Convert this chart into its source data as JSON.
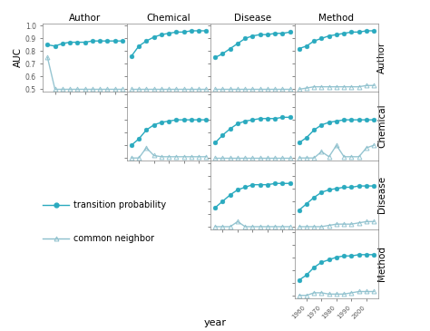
{
  "years": [
    1955,
    1960,
    1965,
    1970,
    1975,
    1980,
    1985,
    1990,
    1995,
    2000,
    2005
  ],
  "col_labels": [
    "Author",
    "Chemical",
    "Disease",
    "Method"
  ],
  "row_labels": [
    "Author",
    "Chemical",
    "Disease",
    "Method"
  ],
  "tp_color": "#2aaabf",
  "cn_color": "#8bbfcc",
  "tp_marker": "o",
  "cn_marker": "^",
  "tp_markersize": 3.5,
  "cn_markersize": 3.5,
  "linewidth": 1.0,
  "auc_ylabel": "AUC",
  "xlabel": "year",
  "data": {
    "0_0": {
      "tp": [
        0.85,
        0.84,
        0.86,
        0.87,
        0.87,
        0.87,
        0.88,
        0.88,
        0.88,
        0.88,
        0.88
      ],
      "cn": [
        0.75,
        0.5,
        0.5,
        0.5,
        0.5,
        0.5,
        0.5,
        0.5,
        0.5,
        0.5,
        0.5
      ]
    },
    "0_1": {
      "tp": [
        0.76,
        0.84,
        0.88,
        0.91,
        0.93,
        0.94,
        0.95,
        0.95,
        0.96,
        0.96,
        0.96
      ],
      "cn": [
        0.5,
        0.5,
        0.5,
        0.5,
        0.5,
        0.5,
        0.5,
        0.5,
        0.5,
        0.5,
        0.5
      ]
    },
    "0_2": {
      "tp": [
        0.75,
        0.78,
        0.82,
        0.86,
        0.9,
        0.92,
        0.93,
        0.93,
        0.94,
        0.94,
        0.95
      ],
      "cn": [
        0.5,
        0.5,
        0.5,
        0.5,
        0.5,
        0.5,
        0.5,
        0.5,
        0.5,
        0.5,
        0.5
      ]
    },
    "0_3": {
      "tp": [
        0.82,
        0.84,
        0.88,
        0.9,
        0.92,
        0.93,
        0.94,
        0.95,
        0.95,
        0.96,
        0.96
      ],
      "cn": [
        0.5,
        0.51,
        0.52,
        0.52,
        0.52,
        0.52,
        0.52,
        0.52,
        0.52,
        0.53,
        0.53
      ]
    },
    "1_1": {
      "tp": [
        0.6,
        0.65,
        0.72,
        0.76,
        0.78,
        0.79,
        0.8,
        0.8,
        0.8,
        0.8,
        0.8
      ],
      "cn": [
        0.5,
        0.5,
        0.58,
        0.52,
        0.51,
        0.51,
        0.51,
        0.51,
        0.51,
        0.51,
        0.51
      ]
    },
    "1_2": {
      "tp": [
        0.62,
        0.68,
        0.73,
        0.77,
        0.79,
        0.8,
        0.81,
        0.81,
        0.81,
        0.82,
        0.82
      ],
      "cn": [
        0.5,
        0.5,
        0.5,
        0.5,
        0.5,
        0.5,
        0.5,
        0.5,
        0.5,
        0.5,
        0.5
      ]
    },
    "1_3": {
      "tp": [
        0.62,
        0.66,
        0.72,
        0.76,
        0.78,
        0.79,
        0.8,
        0.8,
        0.8,
        0.8,
        0.8
      ],
      "cn": [
        0.5,
        0.5,
        0.5,
        0.55,
        0.51,
        0.6,
        0.51,
        0.51,
        0.51,
        0.58,
        0.6
      ]
    },
    "2_2": {
      "tp": [
        0.65,
        0.7,
        0.75,
        0.79,
        0.81,
        0.83,
        0.83,
        0.83,
        0.84,
        0.84,
        0.84
      ],
      "cn": [
        0.5,
        0.5,
        0.5,
        0.54,
        0.5,
        0.5,
        0.5,
        0.5,
        0.5,
        0.5,
        0.5
      ]
    },
    "2_3": {
      "tp": [
        0.63,
        0.68,
        0.73,
        0.77,
        0.79,
        0.8,
        0.81,
        0.81,
        0.82,
        0.82,
        0.82
      ],
      "cn": [
        0.5,
        0.5,
        0.5,
        0.5,
        0.51,
        0.52,
        0.52,
        0.52,
        0.53,
        0.54,
        0.54
      ]
    },
    "3_3": {
      "tp": [
        0.62,
        0.66,
        0.72,
        0.76,
        0.78,
        0.8,
        0.81,
        0.81,
        0.82,
        0.82,
        0.82
      ],
      "cn": [
        0.5,
        0.5,
        0.52,
        0.52,
        0.51,
        0.51,
        0.51,
        0.52,
        0.53,
        0.53,
        0.53
      ]
    }
  },
  "xticks": [
    1960,
    1970,
    1980,
    1990,
    2000
  ],
  "xtick_labels": [
    "1960",
    "1970",
    "1980",
    "1990",
    "2000"
  ],
  "yticks": [
    0.5,
    0.6,
    0.7,
    0.8,
    0.9,
    1.0
  ],
  "ytick_labels": [
    "0.5",
    "0.6",
    "0.7",
    "0.8",
    "0.9",
    "1.0"
  ]
}
